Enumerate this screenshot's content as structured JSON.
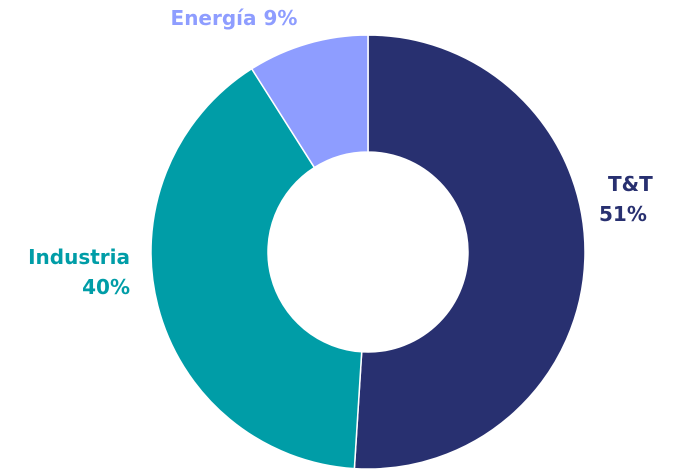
{
  "chart_data": {
    "type": "pie",
    "donut": true,
    "slices": [
      {
        "name": "T&T",
        "value": 51,
        "label_line1": "T&T",
        "label_line2": "51%",
        "color": "#283070"
      },
      {
        "name": "Industria",
        "value": 40,
        "label_line1": "Industria",
        "label_line2": "40%",
        "color": "#009DA7"
      },
      {
        "name": "Energía",
        "value": 9,
        "label_line1": "Energía 9%",
        "label_line2": "",
        "color": "#8E9DFF"
      }
    ],
    "legend": "none",
    "slice_border_color": "#ffffff"
  }
}
